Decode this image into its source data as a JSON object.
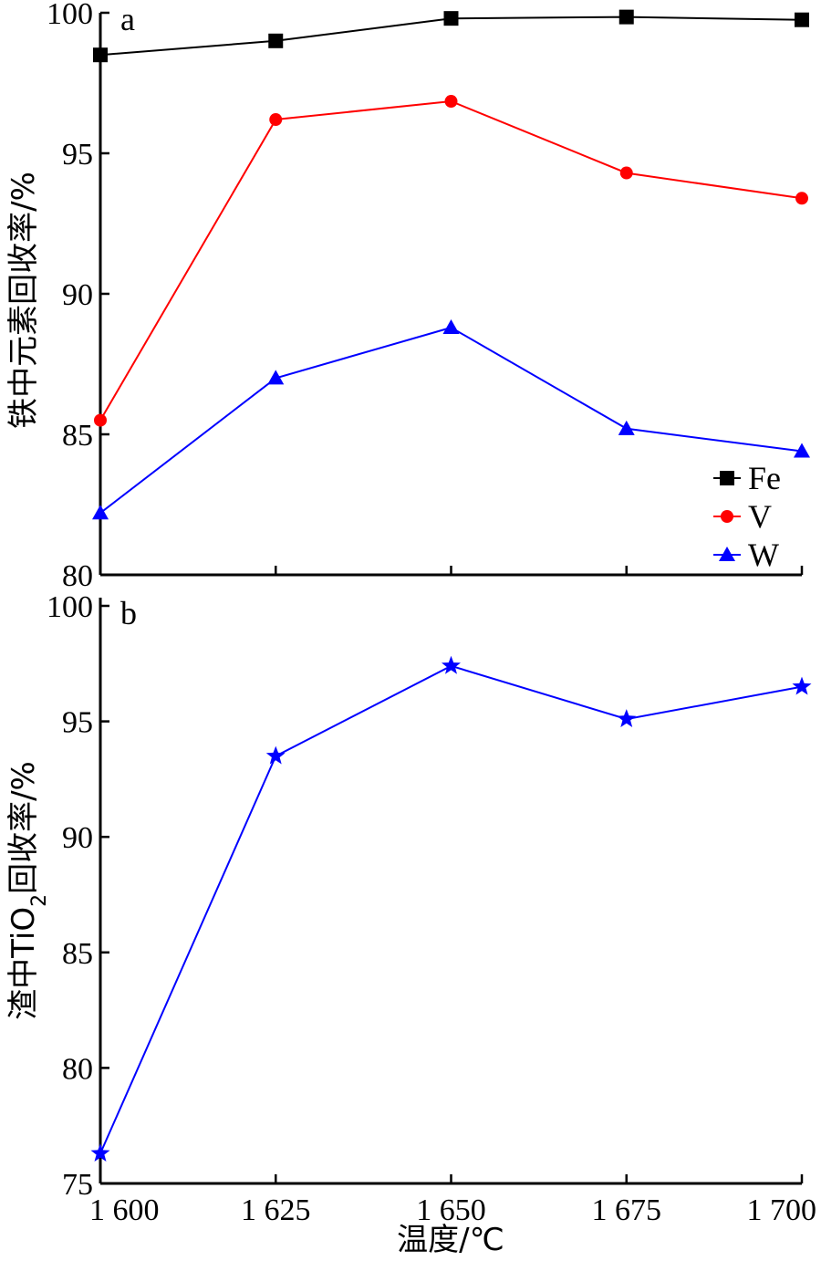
{
  "chart_data": [
    {
      "type": "line",
      "panel_label": "a",
      "ylabel": "铁中元素回收率/%",
      "x": [
        1600,
        1625,
        1650,
        1675,
        1700
      ],
      "ylim": [
        80,
        100
      ],
      "yticks": [
        80,
        85,
        90,
        95,
        100
      ],
      "legend_placement": "bottom-right",
      "series": [
        {
          "name": "Fe",
          "color": "#000000",
          "marker": "square",
          "values": [
            98.5,
            99.0,
            99.8,
            99.85,
            99.75
          ]
        },
        {
          "name": "V",
          "color": "#ff0000",
          "marker": "circle",
          "values": [
            85.5,
            96.2,
            96.85,
            94.3,
            93.4
          ]
        },
        {
          "name": "W",
          "color": "#0000ff",
          "marker": "triangle",
          "values": [
            82.2,
            87.0,
            88.8,
            85.2,
            84.4
          ]
        }
      ]
    },
    {
      "type": "line",
      "panel_label": "b",
      "ylabel_parts": {
        "pre": "渣中TiO",
        "sub": "2",
        "post": "回收率/%"
      },
      "x": [
        1600,
        1625,
        1650,
        1675,
        1700
      ],
      "ylim": [
        75,
        100
      ],
      "yticks": [
        75,
        80,
        85,
        90,
        95,
        100
      ],
      "series": [
        {
          "name": "TiO2",
          "color": "#0000ff",
          "marker": "star",
          "values": [
            76.3,
            93.5,
            97.4,
            95.1,
            96.5
          ]
        }
      ]
    }
  ],
  "shared_x": {
    "tick_labels": [
      "1 600",
      "1 625",
      "1 650",
      "1 675",
      "1 700"
    ],
    "xlabel": "温度/℃"
  }
}
